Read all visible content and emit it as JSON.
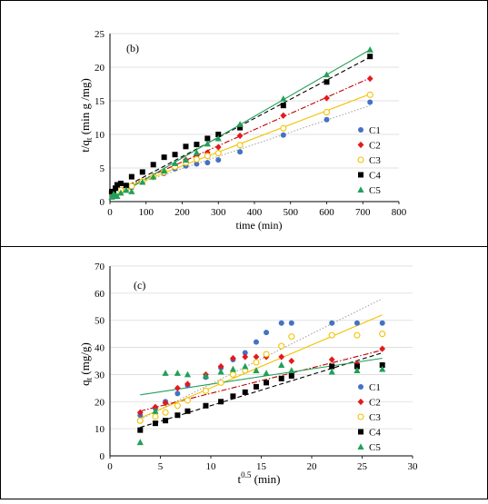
{
  "colors": {
    "C1": "#4472C4",
    "C2": "#E31A1C",
    "C3": "#F2C200",
    "C4": "#000000",
    "C5": "#21A058"
  },
  "chart_data": [
    {
      "type": "scatter",
      "panel_label": "(b)",
      "xlabel": "time (min)",
      "ylabel_main": "t/q",
      "ylabel_sub": "t",
      "ylabel_tail": " (min g /mg)",
      "xlim": [
        0,
        800
      ],
      "ylim": [
        0,
        25
      ],
      "xticks": [
        0,
        100,
        200,
        300,
        400,
        500,
        600,
        700,
        800
      ],
      "yticks": [
        0,
        5,
        10,
        15,
        20,
        25
      ],
      "legend_position": "right",
      "series": [
        {
          "name": "C1",
          "marker": "circle-filled",
          "color": "#4472C4",
          "line": "dotted",
          "line_color": "#A6A6A6",
          "fit": [
            [
              0,
              1.3
            ],
            [
              720,
              14.3
            ]
          ],
          "x": [
            5,
            10,
            15,
            20,
            30,
            45,
            60,
            90,
            120,
            150,
            180,
            210,
            240,
            270,
            300,
            360,
            480,
            600,
            720
          ],
          "y": [
            1.0,
            1.1,
            1.2,
            1.3,
            1.5,
            1.8,
            2.1,
            2.9,
            3.6,
            4.2,
            4.9,
            5.3,
            5.6,
            5.8,
            6.2,
            7.4,
            9.9,
            12.2,
            14.8
          ]
        },
        {
          "name": "C2",
          "marker": "diamond-filled",
          "color": "#E31A1C",
          "line": "dashdot",
          "line_color": "#C00000",
          "fit": [
            [
              0,
              1.1
            ],
            [
              720,
              18.4
            ]
          ],
          "x": [
            5,
            10,
            15,
            20,
            30,
            45,
            60,
            90,
            120,
            150,
            180,
            210,
            240,
            270,
            300,
            360,
            480,
            600,
            720
          ],
          "y": [
            1.2,
            1.3,
            1.3,
            1.4,
            1.6,
            2.0,
            2.3,
            3.0,
            3.8,
            4.5,
            5.4,
            6.2,
            6.8,
            7.3,
            8.1,
            9.8,
            12.8,
            15.4,
            18.3
          ]
        },
        {
          "name": "C3",
          "marker": "circle-open",
          "color": "#F2C200",
          "line": "solid",
          "line_color": "#F2C200",
          "fit": [
            [
              0,
              1.2
            ],
            [
              720,
              16.0
            ]
          ],
          "x": [
            5,
            10,
            15,
            20,
            30,
            45,
            60,
            90,
            120,
            150,
            180,
            210,
            240,
            270,
            300,
            360,
            480,
            600,
            720
          ],
          "y": [
            1.4,
            1.3,
            1.4,
            1.5,
            1.7,
            2.0,
            2.3,
            3.0,
            3.7,
            4.4,
            5.2,
            5.8,
            6.3,
            6.8,
            7.2,
            8.4,
            10.9,
            13.3,
            15.9
          ]
        },
        {
          "name": "C4",
          "marker": "square-filled",
          "color": "#000000",
          "line": "dashed",
          "line_color": "#000000",
          "fit": [
            [
              0,
              1.0
            ],
            [
              720,
              21.5
            ]
          ],
          "x": [
            5,
            10,
            15,
            20,
            30,
            45,
            60,
            90,
            120,
            150,
            180,
            210,
            240,
            270,
            300,
            360,
            480,
            600,
            720
          ],
          "y": [
            1.5,
            1.4,
            2.0,
            2.5,
            2.7,
            2.4,
            3.7,
            4.4,
            5.5,
            6.6,
            7.0,
            8.2,
            8.5,
            9.4,
            10.0,
            11.0,
            14.3,
            17.8,
            21.6
          ]
        },
        {
          "name": "C5",
          "marker": "triangle-filled",
          "color": "#21A058",
          "line": "solid",
          "line_color": "#21A058",
          "fit": [
            [
              0,
              0.3
            ],
            [
              720,
              22.6
            ]
          ],
          "x": [
            5,
            10,
            15,
            20,
            30,
            45,
            60,
            90,
            120,
            150,
            180,
            210,
            240,
            270,
            300,
            360,
            480,
            600,
            720
          ],
          "y": [
            0.7,
            1.1,
            0.9,
            0.8,
            1.3,
            1.7,
            1.5,
            2.9,
            3.7,
            4.6,
            5.7,
            6.2,
            7.3,
            8.6,
            9.4,
            11.5,
            15.3,
            18.9,
            22.6
          ]
        }
      ]
    },
    {
      "type": "scatter",
      "panel_label": "(c)",
      "xlabel_main": "t",
      "xlabel_sup": "0.5",
      "xlabel_tail": " (min)",
      "ylabel_main": "q",
      "ylabel_sub": "t",
      "ylabel_tail": " (mg/g)",
      "xlim": [
        0,
        30
      ],
      "ylim": [
        0,
        70
      ],
      "xticks": [
        0,
        5,
        10,
        15,
        20,
        25,
        30
      ],
      "yticks": [
        0,
        10,
        20,
        30,
        40,
        50,
        60,
        70
      ],
      "legend_position": "right",
      "series": [
        {
          "name": "C1",
          "marker": "circle-filled",
          "color": "#4472C4",
          "line": "dotted",
          "line_color": "#A6A6A6",
          "fit": [
            [
              3,
              13.5
            ],
            [
              27,
              58.0
            ]
          ],
          "x": [
            3.0,
            4.5,
            5.5,
            6.7,
            7.7,
            9.5,
            11.0,
            12.2,
            13.4,
            14.5,
            15.5,
            17.0,
            18.0,
            22.0,
            24.5,
            27.0
          ],
          "y": [
            15.0,
            17.5,
            20.0,
            23.0,
            26.0,
            29.0,
            32.5,
            35.5,
            38.0,
            42.0,
            45.5,
            49.0,
            49.0,
            49.0,
            49.0,
            49.0
          ]
        },
        {
          "name": "C2",
          "marker": "diamond-filled",
          "color": "#E31A1C",
          "line": "dashdot",
          "line_color": "#C00000",
          "fit": [
            [
              3,
              16.5
            ],
            [
              27,
              39.0
            ]
          ],
          "x": [
            3.0,
            4.5,
            5.5,
            6.7,
            7.7,
            9.5,
            11.0,
            12.2,
            13.4,
            14.5,
            15.5,
            17.0,
            18.0,
            22.0,
            24.5,
            27.0
          ],
          "y": [
            16.0,
            18.0,
            19.5,
            25.0,
            26.5,
            30.0,
            33.0,
            36.0,
            36.5,
            36.5,
            36.5,
            36.5,
            35.0,
            35.5,
            34.0,
            39.5
          ]
        },
        {
          "name": "C3",
          "marker": "circle-open",
          "color": "#F2C200",
          "line": "solid",
          "line_color": "#F2C200",
          "fit": [
            [
              3,
              14.0
            ],
            [
              27,
              52.0
            ]
          ],
          "x": [
            3.0,
            4.5,
            5.5,
            6.7,
            7.7,
            9.5,
            11.0,
            12.2,
            13.4,
            14.5,
            15.5,
            17.0,
            18.0,
            22.0,
            24.5,
            27.0
          ],
          "y": [
            13.0,
            14.5,
            16.0,
            18.5,
            20.5,
            24.0,
            27.0,
            30.0,
            31.5,
            34.5,
            37.5,
            40.5,
            44.0,
            44.5,
            44.5,
            45.0
          ]
        },
        {
          "name": "C4",
          "marker": "square-filled",
          "color": "#000000",
          "line": "dashed",
          "line_color": "#000000",
          "fit": [
            [
              3,
              10.5
            ],
            [
              27,
              38.0
            ]
          ],
          "x": [
            3.0,
            4.5,
            5.5,
            6.7,
            7.7,
            9.5,
            11.0,
            12.2,
            13.4,
            14.5,
            15.5,
            17.0,
            18.0,
            22.0,
            24.5,
            27.0
          ],
          "y": [
            9.5,
            12.0,
            13.0,
            15.0,
            16.5,
            18.5,
            20.0,
            22.0,
            23.5,
            25.5,
            27.0,
            28.5,
            29.5,
            33.0,
            33.0,
            33.5
          ]
        },
        {
          "name": "C5",
          "marker": "triangle-filled",
          "color": "#21A058",
          "line": "solid",
          "line_color": "#21A058",
          "fit": [
            [
              3,
              22.5
            ],
            [
              27,
              36.0
            ]
          ],
          "x": [
            3.0,
            4.5,
            5.5,
            6.7,
            7.7,
            9.5,
            11.0,
            12.2,
            13.4,
            14.5,
            15.5,
            17.0,
            18.0,
            22.0,
            24.5,
            27.0
          ],
          "y": [
            5.0,
            16.5,
            30.5,
            30.5,
            30.0,
            29.5,
            31.0,
            32.0,
            33.0,
            31.5,
            30.5,
            33.5,
            31.5,
            31.0,
            31.5,
            32.0
          ]
        }
      ]
    }
  ]
}
